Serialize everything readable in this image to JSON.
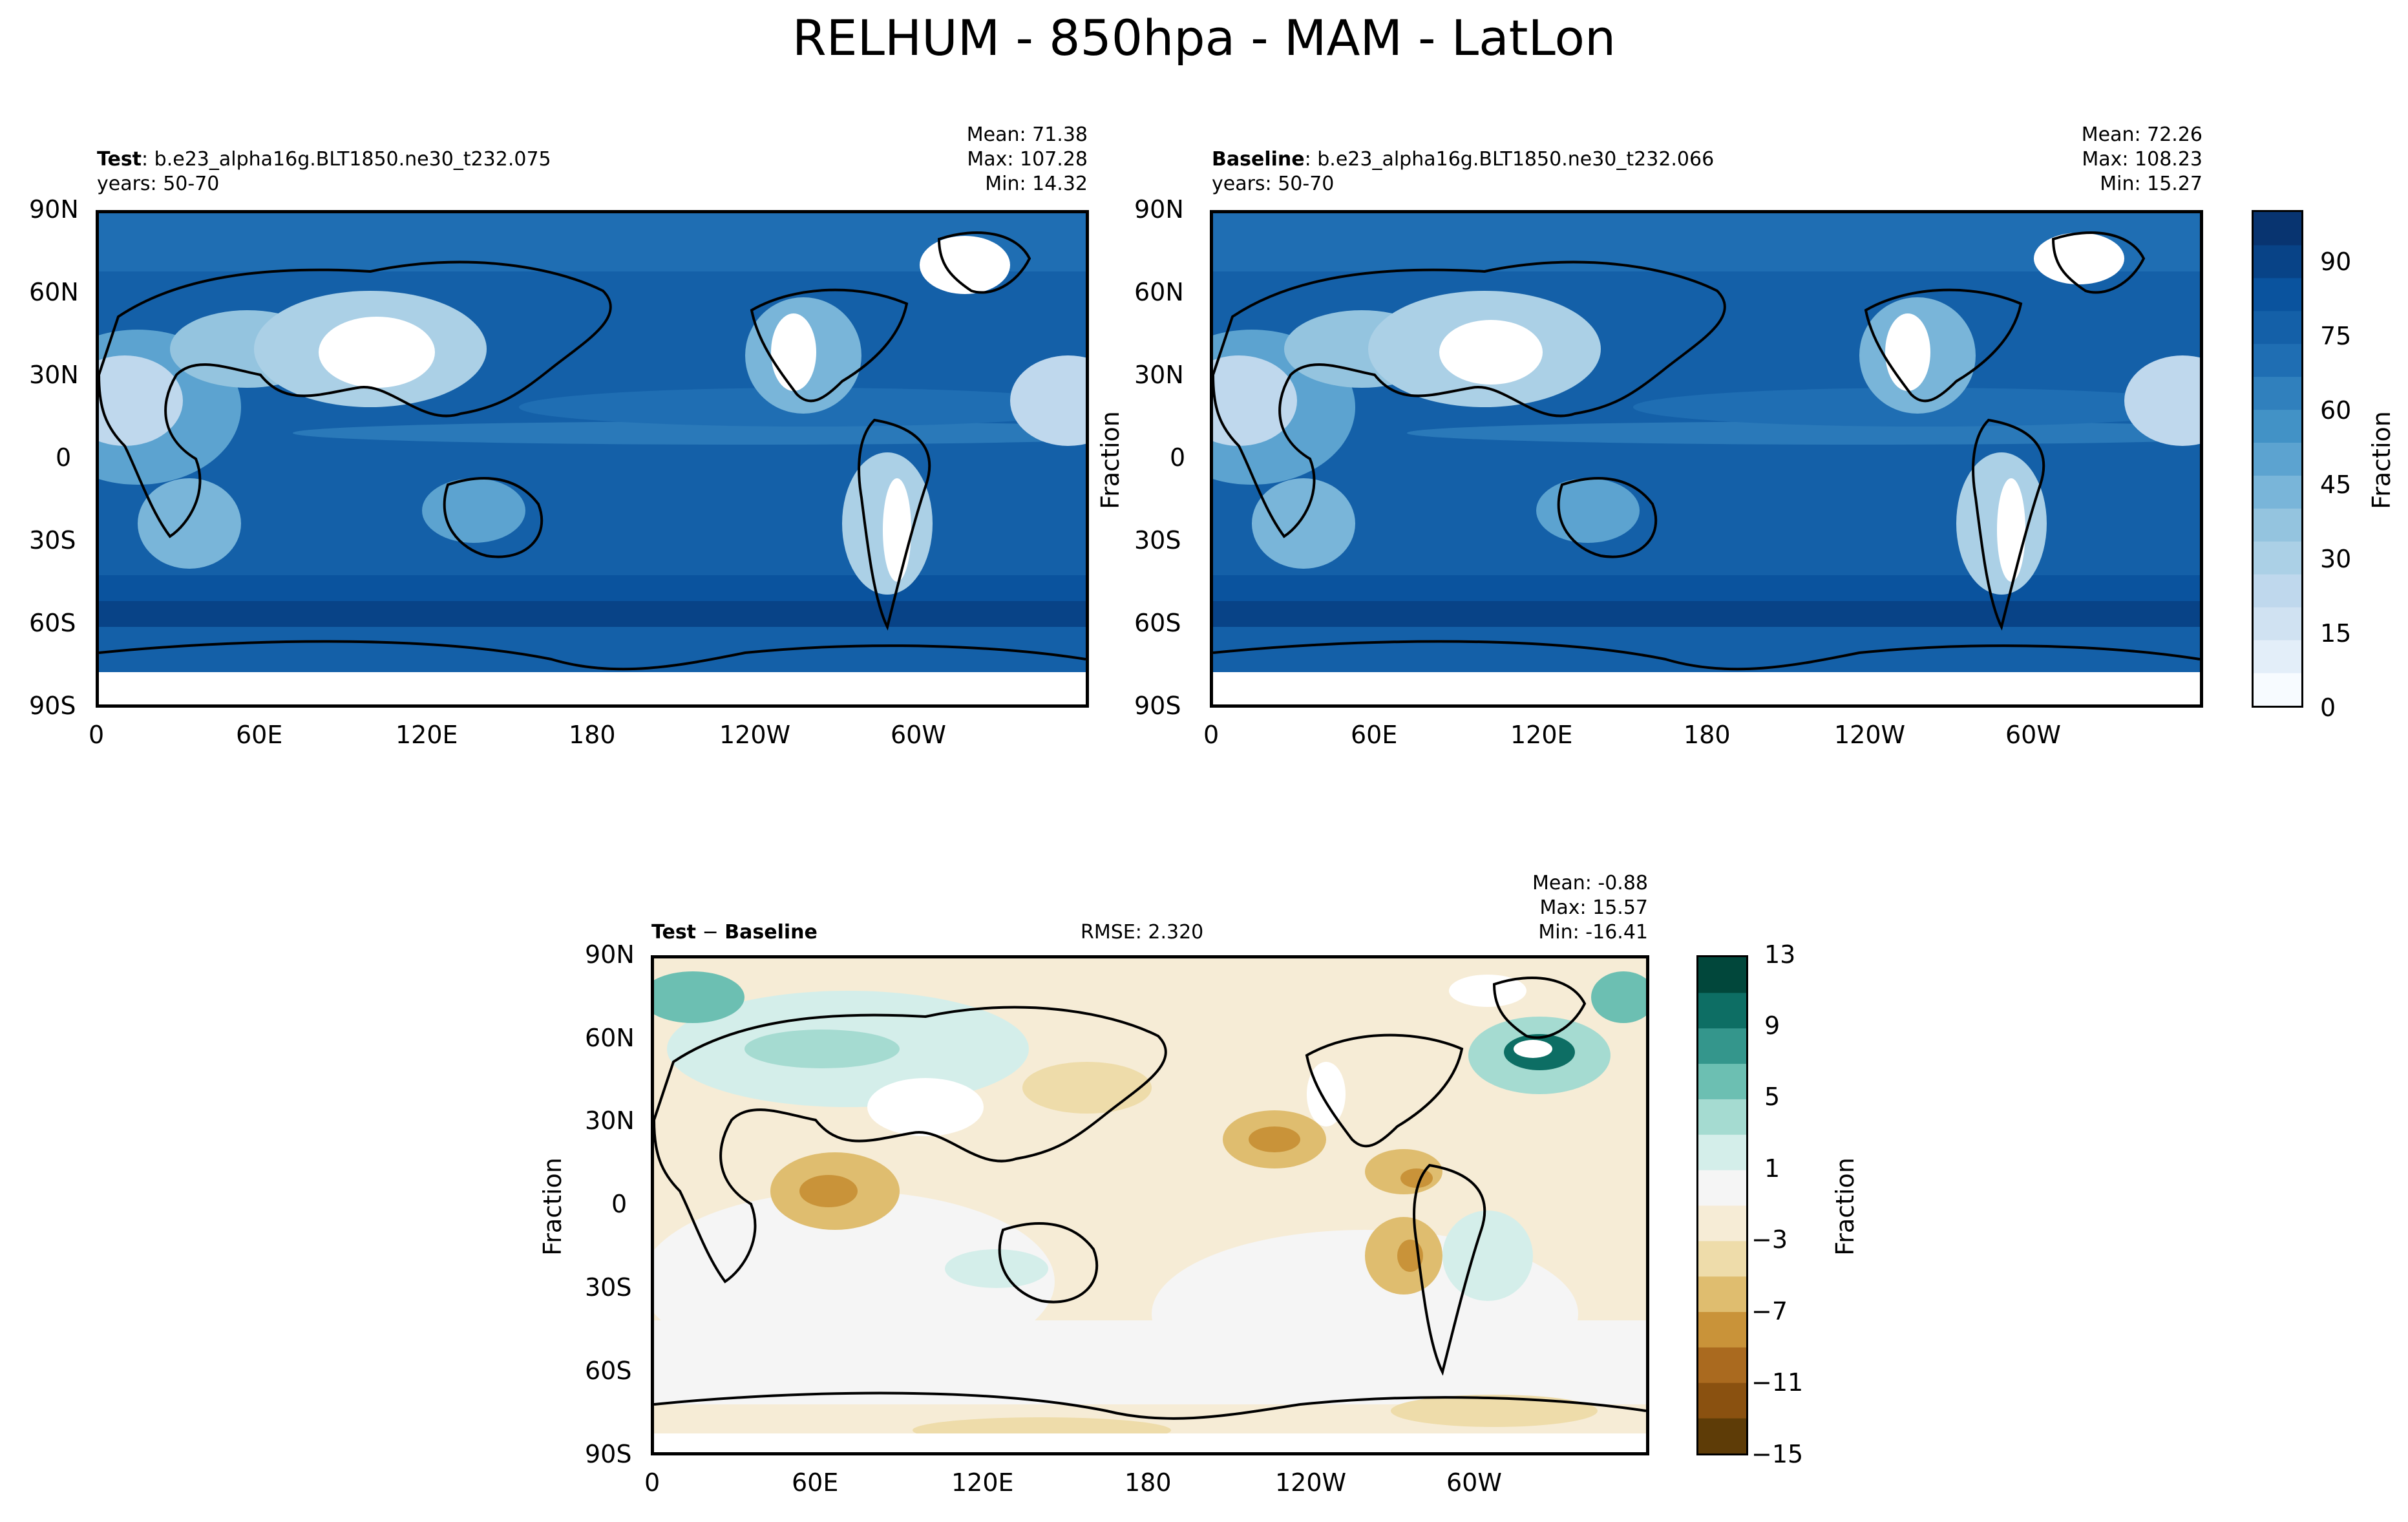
{
  "figure_title": "RELHUM - 850hpa - MAM - LatLon",
  "panels": {
    "test": {
      "bold_label": "Test",
      "case": ": b.e23_alpha16g.BLT1850.ne30_t232.075",
      "years": "years: 50-70",
      "mean": "Mean: 71.38",
      "max": "Max: 107.28",
      "min": "Min: 14.32"
    },
    "baseline": {
      "bold_label": "Baseline",
      "case": ": b.e23_alpha16g.BLT1850.ne30_t232.066",
      "years": "years: 50-70",
      "mean": "Mean: 72.26",
      "max": "Max: 108.23",
      "min": "Min: 15.27",
      "ylabel": "Fraction"
    },
    "diff": {
      "title_a": "Test",
      "title_op": " − ",
      "title_b": "Baseline",
      "rmse": "RMSE: 2.320",
      "mean": "Mean: -0.88",
      "max": "Max: 15.57",
      "min": "Min: -16.41",
      "ylabel": "Fraction"
    }
  },
  "axis_ticks": {
    "lat": [
      "90N",
      "60N",
      "30N",
      "0",
      "30S",
      "60S",
      "90S"
    ],
    "lon": [
      "0",
      "60E",
      "120E",
      "180",
      "120W",
      "60W"
    ]
  },
  "colorbars": {
    "main": {
      "label": "Fraction",
      "ticks": [
        "90",
        "75",
        "60",
        "45",
        "30",
        "15",
        "0"
      ],
      "range": [
        0,
        100
      ],
      "colors": [
        "#f7fbff",
        "#e3eef9",
        "#d0e2f2",
        "#bfd8ed",
        "#abd0e6",
        "#94c4df",
        "#79b5d9",
        "#5ca3d0",
        "#4292c6",
        "#3080bd",
        "#1f6eb3",
        "#1460a8",
        "#0a539e",
        "#084387",
        "#083470"
      ]
    },
    "diff": {
      "label": "Fraction",
      "ticks": [
        "13",
        "9",
        "5",
        "1",
        "−3",
        "−7",
        "−11",
        "−15"
      ],
      "range": [
        -15,
        13
      ],
      "colors": [
        "#5e3c07",
        "#8a5110",
        "#aa6a1f",
        "#c99339",
        "#dfbd6f",
        "#eedcaa",
        "#f6ecd6",
        "#f5f5f5",
        "#d4eeea",
        "#a5dbd1",
        "#6cbfb2",
        "#34968c",
        "#0d6e64",
        "#01473b"
      ]
    }
  },
  "chart_data": [
    {
      "type": "heatmap",
      "title": "Test : b.e23_alpha16g.BLT1850.ne30_t232.075",
      "subtitle": "years: 50-70",
      "stats": {
        "mean": 71.38,
        "max": 107.28,
        "min": 14.32
      },
      "xticks": [
        "0",
        "60E",
        "120E",
        "180",
        "120W",
        "60W"
      ],
      "yticks": [
        "90N",
        "60N",
        "30N",
        "0",
        "30S",
        "60S",
        "90S"
      ],
      "colorbar": {
        "label": "Fraction",
        "range": [
          0,
          100
        ],
        "ticks": [
          0,
          15,
          30,
          45,
          60,
          75,
          90
        ]
      }
    },
    {
      "type": "heatmap",
      "title": "Baseline : b.e23_alpha16g.BLT1850.ne30_t232.066",
      "subtitle": "years: 50-70",
      "ylabel": "Fraction",
      "stats": {
        "mean": 72.26,
        "max": 108.23,
        "min": 15.27
      },
      "xticks": [
        "0",
        "60E",
        "120E",
        "180",
        "120W",
        "60W"
      ],
      "yticks": [
        "90N",
        "60N",
        "30N",
        "0",
        "30S",
        "60S",
        "90S"
      ],
      "colorbar": {
        "label": "Fraction",
        "range": [
          0,
          100
        ],
        "ticks": [
          0,
          15,
          30,
          45,
          60,
          75,
          90
        ]
      }
    },
    {
      "type": "heatmap",
      "title": "Test − Baseline",
      "ylabel": "Fraction",
      "rmse": 2.32,
      "stats": {
        "mean": -0.88,
        "max": 15.57,
        "min": -16.41
      },
      "xticks": [
        "0",
        "60E",
        "120E",
        "180",
        "120W",
        "60W"
      ],
      "yticks": [
        "90N",
        "60N",
        "30N",
        "0",
        "30S",
        "60S",
        "90S"
      ],
      "colorbar": {
        "label": "Fraction",
        "range": [
          -15,
          13
        ],
        "ticks": [
          -15,
          -11,
          -7,
          -3,
          1,
          5,
          9,
          13
        ]
      }
    }
  ]
}
